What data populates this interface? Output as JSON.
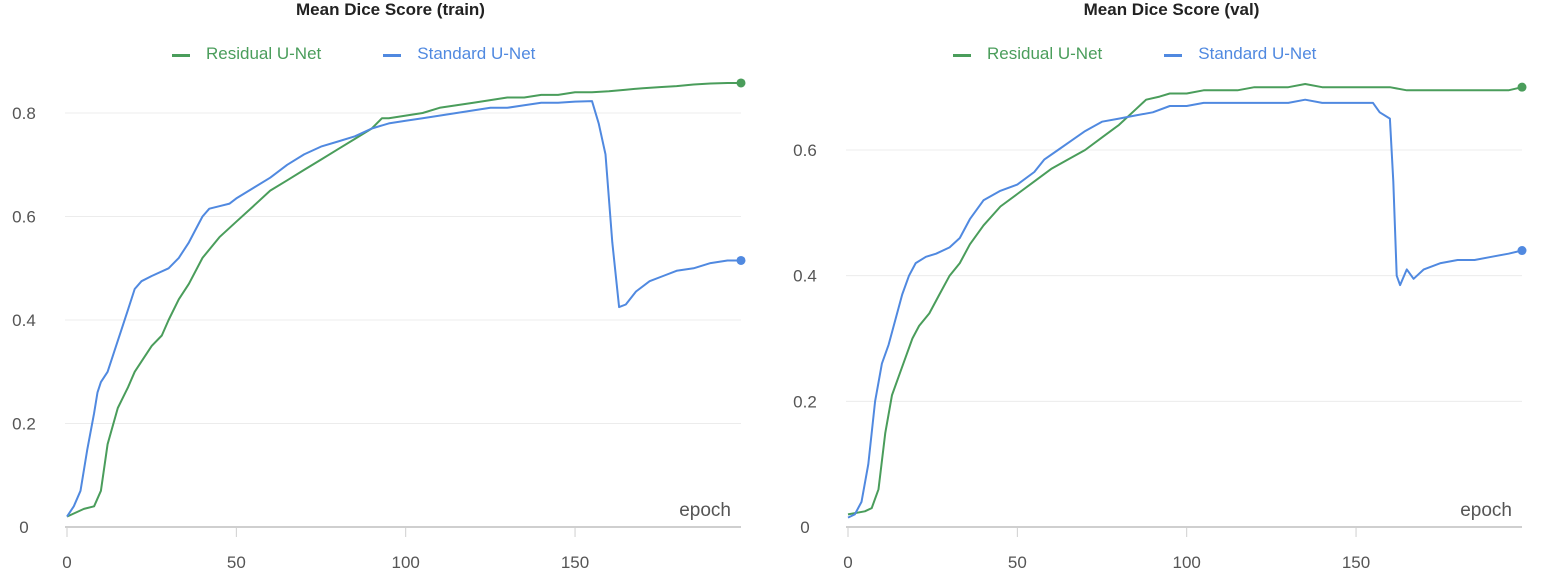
{
  "colors": {
    "residual": "#4a9d5b",
    "standard": "#5089e0"
  },
  "chart_data": [
    {
      "type": "line",
      "title": "Mean Dice Score (train)",
      "xlabel": "epoch",
      "ylabel": "",
      "xlim": [
        0,
        199
      ],
      "ylim": [
        0,
        0.88
      ],
      "xticks": [
        0,
        50,
        100,
        150
      ],
      "xtick_labels": [
        "0",
        "50",
        "100",
        "150"
      ],
      "yticks": [
        0,
        0.2,
        0.4,
        0.6,
        0.8
      ],
      "ytick_labels": [
        "0",
        "0.2",
        "0.4",
        "0.6",
        "0.8"
      ],
      "grid": true,
      "legend_position": "top",
      "series": [
        {
          "name": "Residual U-Net",
          "color": "#4a9d5b",
          "points": [
            [
              0,
              0.02
            ],
            [
              5,
              0.035
            ],
            [
              8,
              0.04
            ],
            [
              10,
              0.07
            ],
            [
              12,
              0.16
            ],
            [
              15,
              0.23
            ],
            [
              18,
              0.27
            ],
            [
              20,
              0.3
            ],
            [
              22,
              0.32
            ],
            [
              25,
              0.35
            ],
            [
              28,
              0.37
            ],
            [
              30,
              0.4
            ],
            [
              33,
              0.44
            ],
            [
              36,
              0.47
            ],
            [
              40,
              0.52
            ],
            [
              45,
              0.56
            ],
            [
              50,
              0.59
            ],
            [
              55,
              0.62
            ],
            [
              60,
              0.65
            ],
            [
              65,
              0.67
            ],
            [
              70,
              0.69
            ],
            [
              75,
              0.71
            ],
            [
              80,
              0.73
            ],
            [
              85,
              0.75
            ],
            [
              90,
              0.77
            ],
            [
              93,
              0.79
            ],
            [
              95,
              0.79
            ],
            [
              100,
              0.795
            ],
            [
              105,
              0.8
            ],
            [
              110,
              0.81
            ],
            [
              115,
              0.815
            ],
            [
              120,
              0.82
            ],
            [
              125,
              0.825
            ],
            [
              130,
              0.83
            ],
            [
              135,
              0.83
            ],
            [
              140,
              0.835
            ],
            [
              145,
              0.835
            ],
            [
              150,
              0.84
            ],
            [
              155,
              0.84
            ],
            [
              160,
              0.842
            ],
            [
              165,
              0.845
            ],
            [
              170,
              0.848
            ],
            [
              175,
              0.85
            ],
            [
              180,
              0.852
            ],
            [
              185,
              0.855
            ],
            [
              190,
              0.857
            ],
            [
              195,
              0.858
            ],
            [
              199,
              0.858
            ]
          ]
        },
        {
          "name": "Standard U-Net",
          "color": "#5089e0",
          "points": [
            [
              0,
              0.02
            ],
            [
              2,
              0.04
            ],
            [
              4,
              0.07
            ],
            [
              6,
              0.15
            ],
            [
              8,
              0.22
            ],
            [
              9,
              0.26
            ],
            [
              10,
              0.28
            ],
            [
              12,
              0.3
            ],
            [
              14,
              0.34
            ],
            [
              16,
              0.38
            ],
            [
              18,
              0.42
            ],
            [
              20,
              0.46
            ],
            [
              22,
              0.475
            ],
            [
              25,
              0.485
            ],
            [
              30,
              0.5
            ],
            [
              33,
              0.52
            ],
            [
              36,
              0.55
            ],
            [
              38,
              0.575
            ],
            [
              40,
              0.6
            ],
            [
              42,
              0.615
            ],
            [
              45,
              0.62
            ],
            [
              48,
              0.625
            ],
            [
              50,
              0.635
            ],
            [
              55,
              0.655
            ],
            [
              60,
              0.675
            ],
            [
              65,
              0.7
            ],
            [
              70,
              0.72
            ],
            [
              75,
              0.735
            ],
            [
              80,
              0.745
            ],
            [
              85,
              0.755
            ],
            [
              90,
              0.77
            ],
            [
              95,
              0.78
            ],
            [
              100,
              0.785
            ],
            [
              105,
              0.79
            ],
            [
              110,
              0.795
            ],
            [
              115,
              0.8
            ],
            [
              120,
              0.805
            ],
            [
              125,
              0.81
            ],
            [
              130,
              0.81
            ],
            [
              135,
              0.815
            ],
            [
              140,
              0.82
            ],
            [
              145,
              0.82
            ],
            [
              150,
              0.822
            ],
            [
              155,
              0.823
            ],
            [
              157,
              0.78
            ],
            [
              159,
              0.72
            ],
            [
              161,
              0.55
            ],
            [
              163,
              0.425
            ],
            [
              165,
              0.43
            ],
            [
              168,
              0.455
            ],
            [
              172,
              0.475
            ],
            [
              176,
              0.485
            ],
            [
              180,
              0.495
            ],
            [
              185,
              0.5
            ],
            [
              190,
              0.51
            ],
            [
              195,
              0.515
            ],
            [
              199,
              0.515
            ]
          ]
        }
      ]
    },
    {
      "type": "line",
      "title": "Mean Dice Score (val)",
      "xlabel": "epoch",
      "ylabel": "",
      "xlim": [
        0,
        199
      ],
      "ylim": [
        0,
        0.72
      ],
      "xticks": [
        0,
        50,
        100,
        150
      ],
      "xtick_labels": [
        "0",
        "50",
        "100",
        "150"
      ],
      "yticks": [
        0,
        0.2,
        0.4,
        0.6
      ],
      "ytick_labels": [
        "0",
        "0.2",
        "0.4",
        "0.6"
      ],
      "grid": true,
      "legend_position": "top",
      "series": [
        {
          "name": "Residual U-Net",
          "color": "#4a9d5b",
          "points": [
            [
              0,
              0.02
            ],
            [
              5,
              0.025
            ],
            [
              7,
              0.03
            ],
            [
              9,
              0.06
            ],
            [
              11,
              0.15
            ],
            [
              13,
              0.21
            ],
            [
              15,
              0.24
            ],
            [
              17,
              0.27
            ],
            [
              19,
              0.3
            ],
            [
              21,
              0.32
            ],
            [
              24,
              0.34
            ],
            [
              27,
              0.37
            ],
            [
              30,
              0.4
            ],
            [
              33,
              0.42
            ],
            [
              36,
              0.45
            ],
            [
              40,
              0.48
            ],
            [
              45,
              0.51
            ],
            [
              50,
              0.53
            ],
            [
              55,
              0.55
            ],
            [
              60,
              0.57
            ],
            [
              65,
              0.585
            ],
            [
              70,
              0.6
            ],
            [
              75,
              0.62
            ],
            [
              80,
              0.64
            ],
            [
              85,
              0.665
            ],
            [
              88,
              0.68
            ],
            [
              92,
              0.685
            ],
            [
              95,
              0.69
            ],
            [
              100,
              0.69
            ],
            [
              105,
              0.695
            ],
            [
              110,
              0.695
            ],
            [
              115,
              0.695
            ],
            [
              120,
              0.7
            ],
            [
              125,
              0.7
            ],
            [
              130,
              0.7
            ],
            [
              135,
              0.705
            ],
            [
              140,
              0.7
            ],
            [
              145,
              0.7
            ],
            [
              150,
              0.7
            ],
            [
              155,
              0.7
            ],
            [
              160,
              0.7
            ],
            [
              165,
              0.695
            ],
            [
              170,
              0.695
            ],
            [
              175,
              0.695
            ],
            [
              180,
              0.695
            ],
            [
              185,
              0.695
            ],
            [
              190,
              0.695
            ],
            [
              195,
              0.695
            ],
            [
              199,
              0.7
            ]
          ]
        },
        {
          "name": "Standard U-Net",
          "color": "#5089e0",
          "points": [
            [
              0,
              0.015
            ],
            [
              2,
              0.02
            ],
            [
              4,
              0.04
            ],
            [
              6,
              0.1
            ],
            [
              8,
              0.2
            ],
            [
              10,
              0.26
            ],
            [
              12,
              0.29
            ],
            [
              14,
              0.33
            ],
            [
              16,
              0.37
            ],
            [
              18,
              0.4
            ],
            [
              20,
              0.42
            ],
            [
              23,
              0.43
            ],
            [
              26,
              0.435
            ],
            [
              30,
              0.445
            ],
            [
              33,
              0.46
            ],
            [
              36,
              0.49
            ],
            [
              40,
              0.52
            ],
            [
              45,
              0.535
            ],
            [
              50,
              0.545
            ],
            [
              55,
              0.565
            ],
            [
              58,
              0.585
            ],
            [
              62,
              0.6
            ],
            [
              66,
              0.615
            ],
            [
              70,
              0.63
            ],
            [
              75,
              0.645
            ],
            [
              80,
              0.65
            ],
            [
              85,
              0.655
            ],
            [
              90,
              0.66
            ],
            [
              95,
              0.67
            ],
            [
              100,
              0.67
            ],
            [
              105,
              0.675
            ],
            [
              110,
              0.675
            ],
            [
              115,
              0.675
            ],
            [
              120,
              0.675
            ],
            [
              125,
              0.675
            ],
            [
              130,
              0.675
            ],
            [
              135,
              0.68
            ],
            [
              140,
              0.675
            ],
            [
              145,
              0.675
            ],
            [
              150,
              0.675
            ],
            [
              155,
              0.675
            ],
            [
              157,
              0.66
            ],
            [
              160,
              0.65
            ],
            [
              161,
              0.55
            ],
            [
              162,
              0.4
            ],
            [
              163,
              0.385
            ],
            [
              165,
              0.41
            ],
            [
              167,
              0.395
            ],
            [
              170,
              0.41
            ],
            [
              175,
              0.42
            ],
            [
              180,
              0.425
            ],
            [
              185,
              0.425
            ],
            [
              190,
              0.43
            ],
            [
              195,
              0.435
            ],
            [
              199,
              0.44
            ]
          ]
        }
      ]
    }
  ]
}
